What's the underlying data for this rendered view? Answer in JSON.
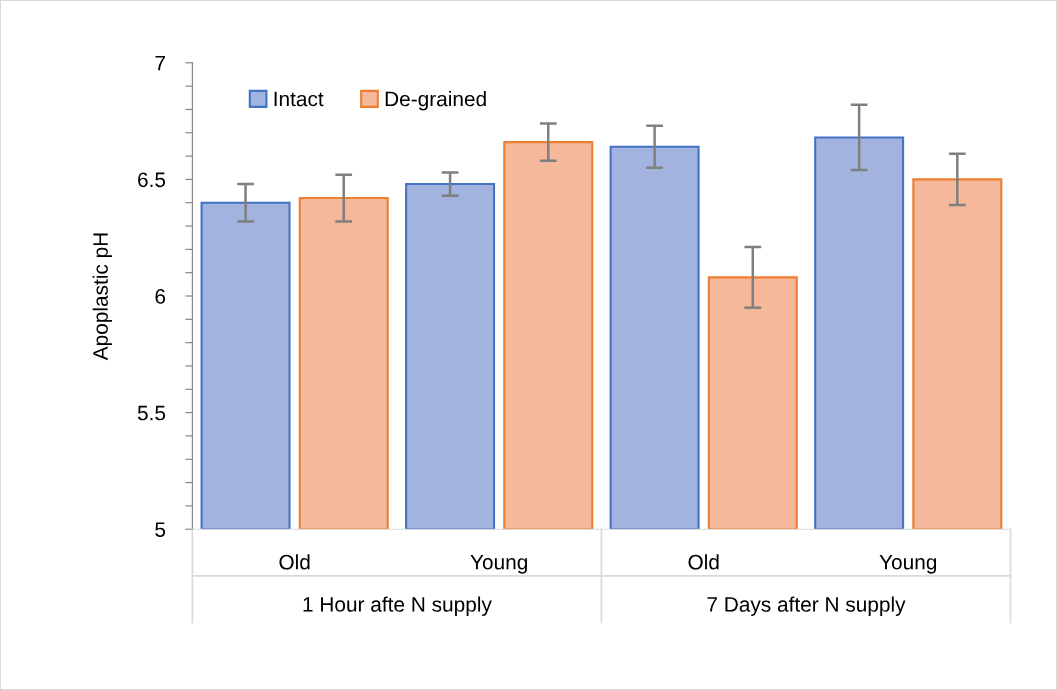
{
  "chart_data": {
    "type": "bar",
    "ylabel": "Apoplastic pH",
    "categories": [
      "Old",
      "Young",
      "Old",
      "Young"
    ],
    "series": [
      {
        "name": "Intact",
        "color": "#a3b3df",
        "values": [
          6.4,
          6.48,
          6.64,
          6.68
        ],
        "errors": [
          0.08,
          0.05,
          0.09,
          0.14
        ]
      },
      {
        "name": "De-grained",
        "color": "#f5b89b",
        "values": [
          6.42,
          6.66,
          6.08,
          6.5
        ],
        "errors": [
          0.1,
          0.08,
          0.13,
          0.11
        ]
      }
    ],
    "ylim": [
      5,
      7
    ],
    "yticks": [
      5,
      {
        "value": 5.1,
        "label": null
      },
      {
        "value": 5.2,
        "label": null
      },
      {
        "value": 5.3,
        "label": null
      },
      {
        "value": 5.4,
        "label": null
      },
      5.5,
      {
        "value": 5.6,
        "label": null
      },
      {
        "value": 5.7,
        "label": null
      },
      {
        "value": 5.8,
        "label": null
      },
      {
        "value": 5.9,
        "label": null
      },
      6,
      {
        "value": 6.1,
        "label": null
      },
      {
        "value": 6.2,
        "label": null
      },
      {
        "value": 6.3,
        "label": null
      },
      {
        "value": 6.4,
        "label": null
      },
      6.5,
      {
        "value": 6.6,
        "label": null
      },
      {
        "value": 6.7,
        "label": null
      },
      {
        "value": 6.8,
        "label": null
      },
      {
        "value": 6.9,
        "label": null
      },
      7
    ],
    "annotations": [
      "1 Hour afte N supply",
      "7 Days after N supply"
    ],
    "legend": "top left",
    "grid": false
  }
}
